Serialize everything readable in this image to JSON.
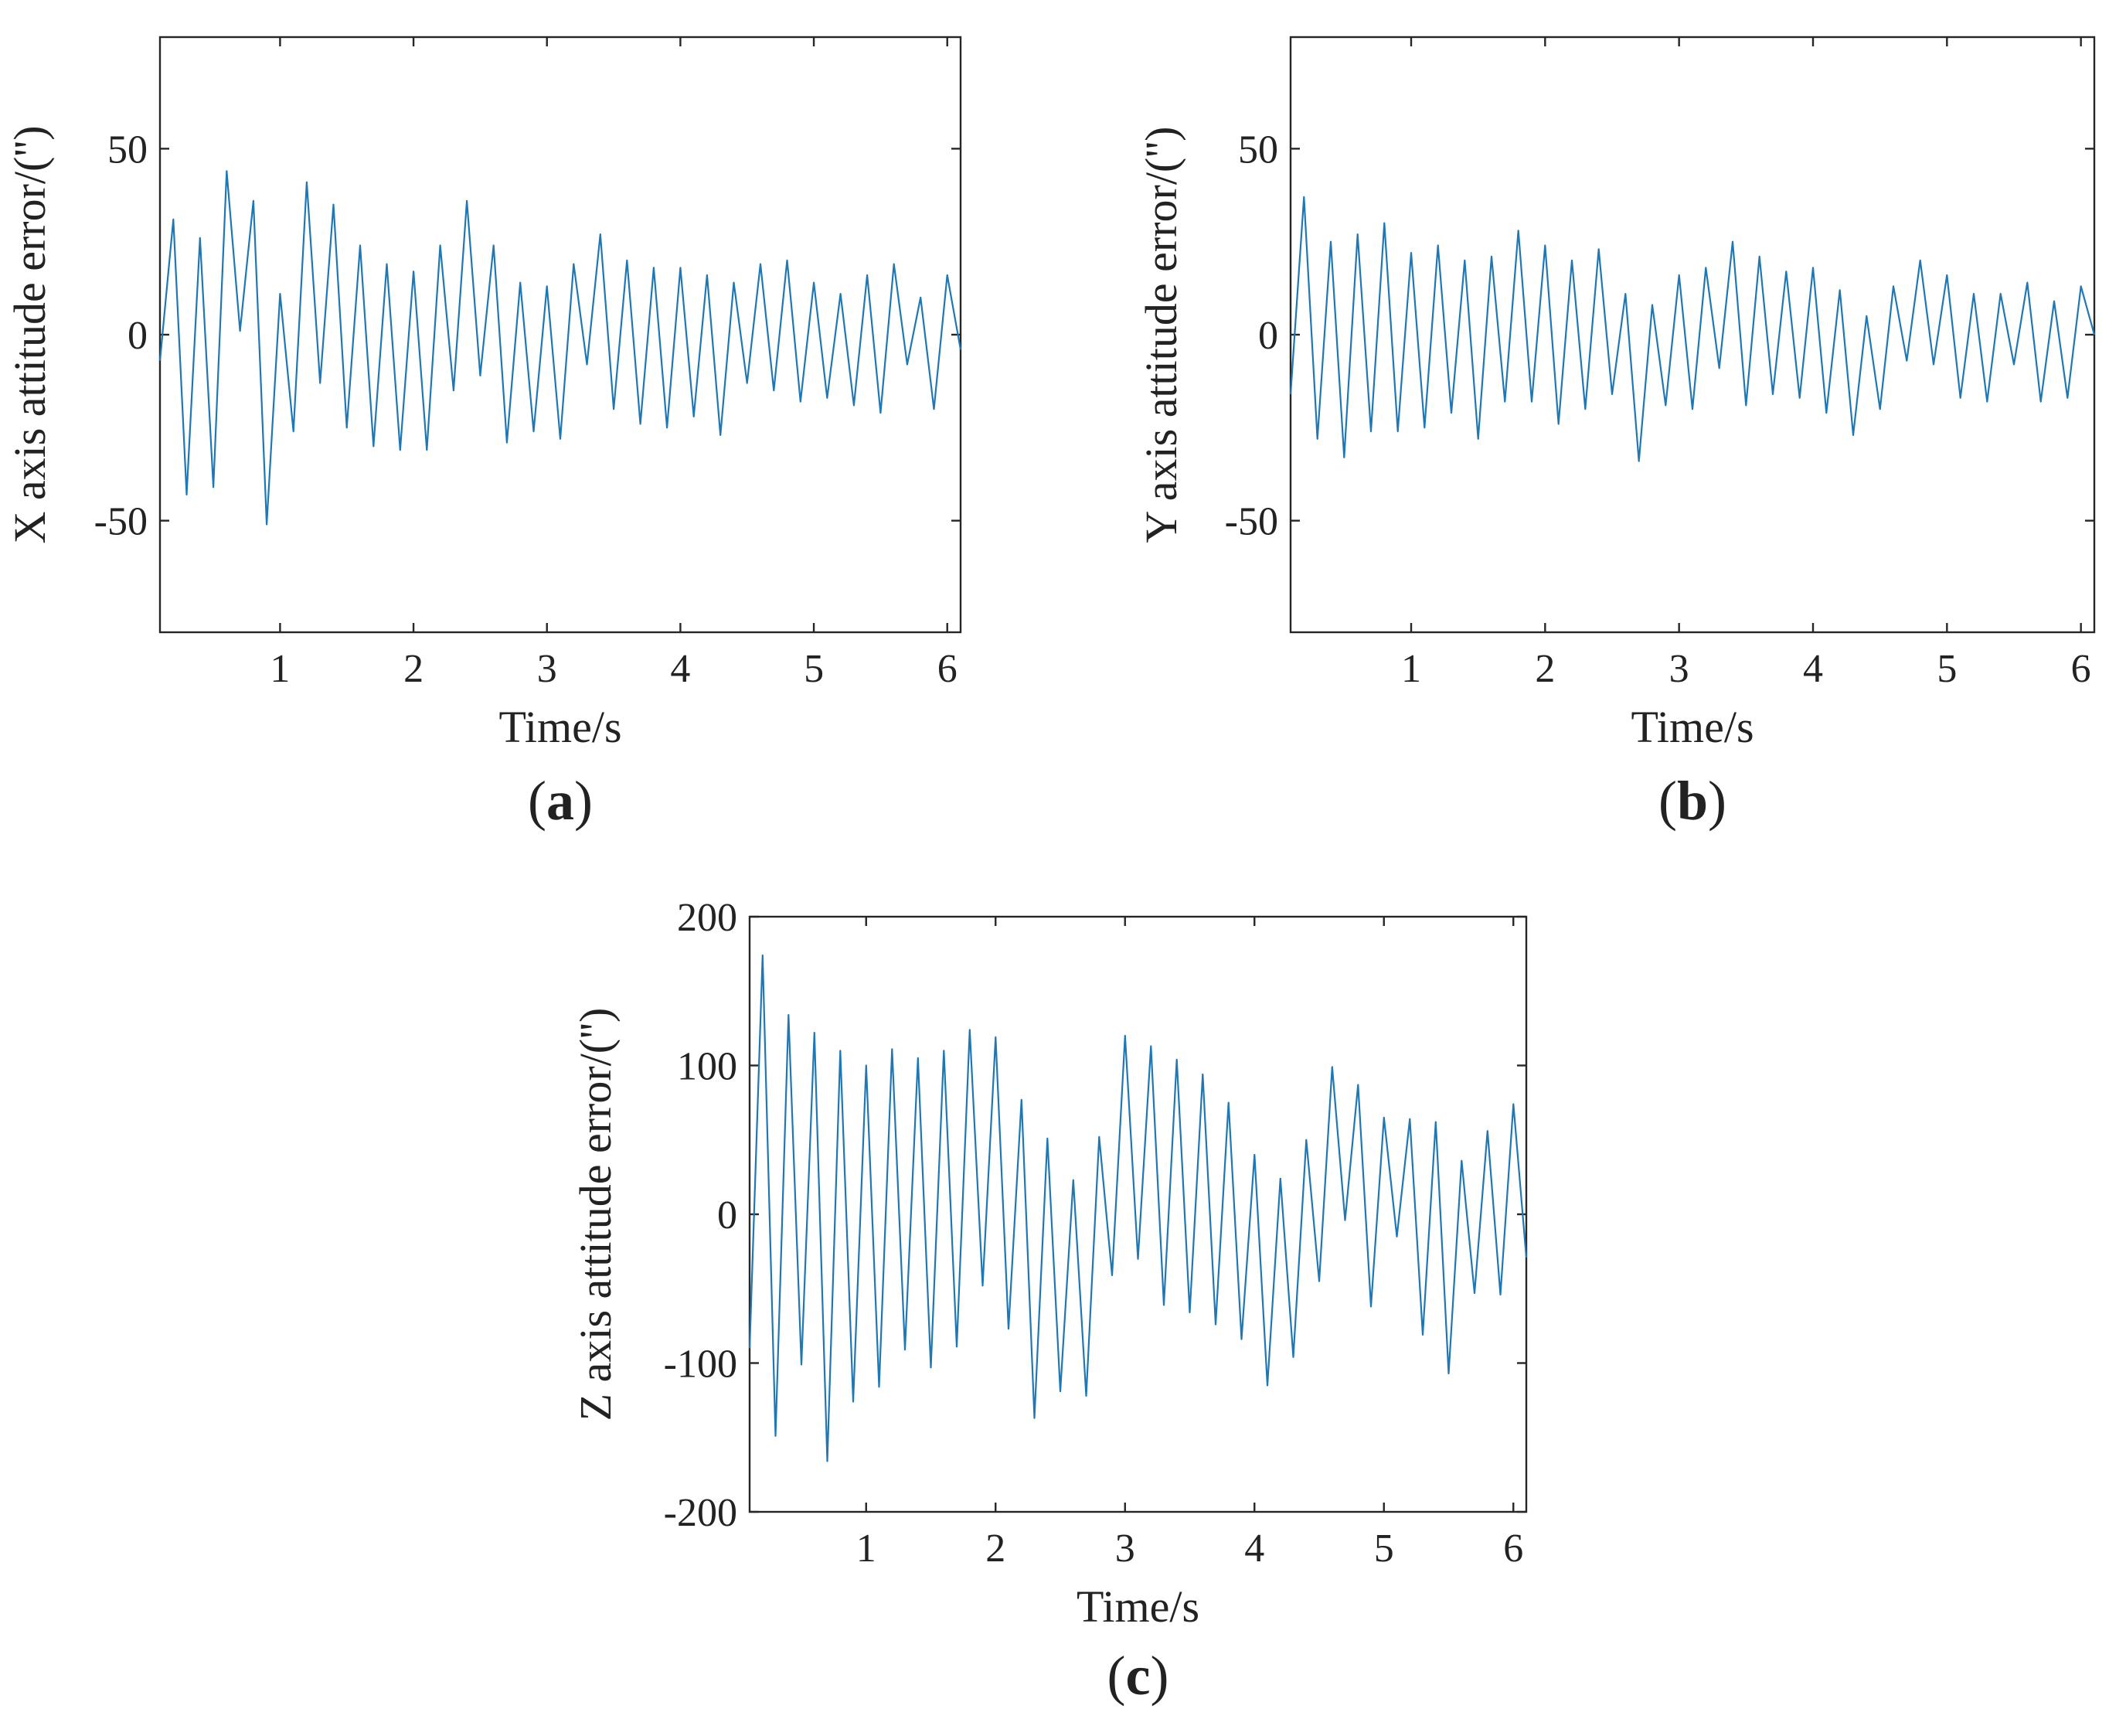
{
  "figure": {
    "line_color": "#1f77b4",
    "axis_color": "#262626"
  },
  "chart_data": [
    {
      "id": "a",
      "type": "line",
      "panel_label": "a",
      "xlabel": "Time/s",
      "ylabel": "X axis attitude error/('')",
      "xlim": [
        0.1,
        6.1
      ],
      "ylim": [
        -80,
        80
      ],
      "xticks": [
        1,
        2,
        3,
        4,
        5,
        6
      ],
      "yticks": [
        -50,
        0,
        50
      ],
      "series": [
        {
          "name": "X axis attitude error",
          "x": [
            0.1,
            0.2,
            0.3,
            0.4,
            0.5,
            0.6,
            0.7,
            0.8,
            0.9,
            1.0,
            1.1,
            1.2,
            1.3,
            1.4,
            1.5,
            1.6,
            1.7,
            1.8,
            1.9,
            2.0,
            2.1,
            2.2,
            2.3,
            2.4,
            2.5,
            2.6,
            2.7,
            2.8,
            2.9,
            3.0,
            3.1,
            3.2,
            3.3,
            3.4,
            3.5,
            3.6,
            3.7,
            3.8,
            3.9,
            4.0,
            4.1,
            4.2,
            4.3,
            4.4,
            4.5,
            4.6,
            4.7,
            4.8,
            4.9,
            5.0,
            5.1,
            5.2,
            5.3,
            5.4,
            5.5,
            5.6,
            5.7,
            5.8,
            5.9,
            6.0,
            6.1
          ],
          "y": [
            -7,
            31,
            -43,
            26,
            -41,
            44,
            1,
            36,
            -51,
            11,
            -26,
            41,
            -13,
            35,
            -25,
            24,
            -30,
            19,
            -31,
            17,
            -31,
            24,
            -15,
            36,
            -11,
            24,
            -29,
            14,
            -26,
            13,
            -28,
            19,
            -8,
            27,
            -20,
            20,
            -24,
            18,
            -25,
            18,
            -22,
            16,
            -27,
            14,
            -13,
            19,
            -15,
            20,
            -18,
            14,
            -17,
            11,
            -19,
            16,
            -21,
            19,
            -8,
            10,
            -20,
            16,
            -4
          ]
        }
      ]
    },
    {
      "id": "b",
      "type": "line",
      "panel_label": "b",
      "xlabel": "Time/s",
      "ylabel": "Y axis attitude error/('')",
      "xlim": [
        0.1,
        6.1
      ],
      "ylim": [
        -80,
        80
      ],
      "xticks": [
        1,
        2,
        3,
        4,
        5,
        6
      ],
      "yticks": [
        -50,
        0,
        50
      ],
      "series": [
        {
          "name": "Y axis attitude error",
          "x": [
            0.1,
            0.2,
            0.3,
            0.4,
            0.5,
            0.6,
            0.7,
            0.8,
            0.9,
            1.0,
            1.1,
            1.2,
            1.3,
            1.4,
            1.5,
            1.6,
            1.7,
            1.8,
            1.9,
            2.0,
            2.1,
            2.2,
            2.3,
            2.4,
            2.5,
            2.6,
            2.7,
            2.8,
            2.9,
            3.0,
            3.1,
            3.2,
            3.3,
            3.4,
            3.5,
            3.6,
            3.7,
            3.8,
            3.9,
            4.0,
            4.1,
            4.2,
            4.3,
            4.4,
            4.5,
            4.6,
            4.7,
            4.8,
            4.9,
            5.0,
            5.1,
            5.2,
            5.3,
            5.4,
            5.5,
            5.6,
            5.7,
            5.8,
            5.9,
            6.0,
            6.1
          ],
          "y": [
            -16,
            37,
            -28,
            25,
            -33,
            27,
            -26,
            30,
            -26,
            22,
            -25,
            24,
            -21,
            20,
            -28,
            21,
            -18,
            28,
            -18,
            24,
            -24,
            20,
            -20,
            23,
            -16,
            11,
            -34,
            8,
            -19,
            16,
            -20,
            18,
            -9,
            25,
            -19,
            21,
            -16,
            17,
            -17,
            18,
            -21,
            12,
            -27,
            5,
            -20,
            13,
            -7,
            20,
            -8,
            16,
            -17,
            11,
            -18,
            11,
            -8,
            14,
            -18,
            9,
            -17,
            13,
            0
          ]
        }
      ]
    },
    {
      "id": "c",
      "type": "line",
      "panel_label": "c",
      "xlabel": "Time/s",
      "ylabel": "Z axis attitude error/('')",
      "xlim": [
        0.1,
        6.1
      ],
      "ylim": [
        -200,
        200
      ],
      "xticks": [
        1,
        2,
        3,
        4,
        5,
        6
      ],
      "yticks": [
        -200,
        -100,
        0,
        100,
        200
      ],
      "series": [
        {
          "name": "Z axis attitude error",
          "x": [
            0.1,
            0.2,
            0.3,
            0.4,
            0.5,
            0.6,
            0.7,
            0.8,
            0.9,
            1.0,
            1.1,
            1.2,
            1.3,
            1.4,
            1.5,
            1.6,
            1.7,
            1.8,
            1.9,
            2.0,
            2.1,
            2.2,
            2.3,
            2.4,
            2.5,
            2.6,
            2.7,
            2.8,
            2.9,
            3.0,
            3.1,
            3.2,
            3.3,
            3.4,
            3.5,
            3.6,
            3.7,
            3.8,
            3.9,
            4.0,
            4.1,
            4.2,
            4.3,
            4.4,
            4.5,
            4.6,
            4.7,
            4.8,
            4.9,
            5.0,
            5.1,
            5.2,
            5.3,
            5.4,
            5.5,
            5.6,
            5.7,
            5.8,
            5.9,
            6.0,
            6.1
          ],
          "y": [
            -90,
            174,
            -149,
            134,
            -101,
            122,
            -166,
            110,
            -126,
            100,
            -116,
            111,
            -91,
            105,
            -103,
            110,
            -89,
            124,
            -48,
            119,
            -77,
            77,
            -137,
            51,
            -119,
            23,
            -122,
            52,
            -41,
            120,
            -30,
            113,
            -61,
            104,
            -66,
            94,
            -74,
            75,
            -84,
            40,
            -115,
            24,
            -96,
            50,
            -45,
            99,
            -4,
            87,
            -62,
            65,
            -15,
            64,
            -81,
            62,
            -107,
            36,
            -53,
            56,
            -54,
            74,
            -29
          ]
        }
      ]
    }
  ]
}
